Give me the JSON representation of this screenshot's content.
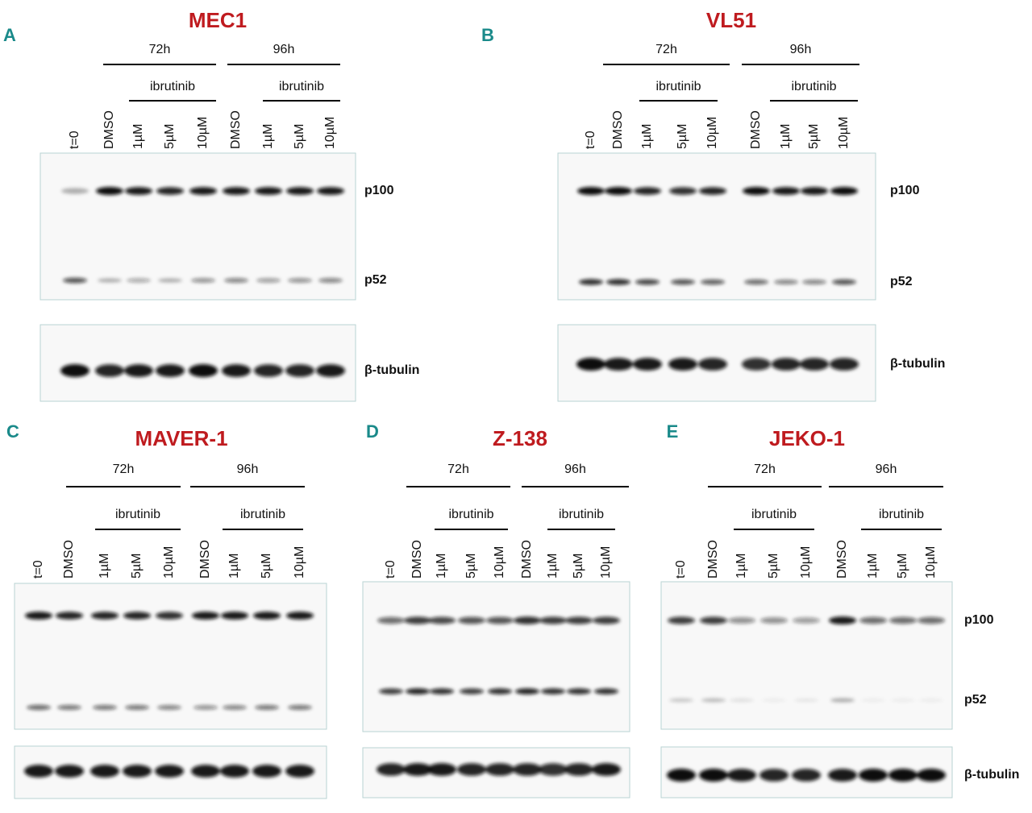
{
  "panels": [
    {
      "letter": "A",
      "title": "MEC1",
      "groups": [
        "72h",
        "96h"
      ],
      "treatment": "ibrutinib",
      "lanes": [
        "t=0",
        "DMSO",
        "1µM",
        "5µM",
        "10µM",
        "DMSO",
        "1µM",
        "5µM",
        "10µM"
      ],
      "bands": [
        "p100",
        "p52",
        "β-tubulin"
      ]
    },
    {
      "letter": "B",
      "title": "VL51",
      "groups": [
        "72h",
        "96h"
      ],
      "treatment": "ibrutinib",
      "lanes": [
        "t=0",
        "DMSO",
        "1µM",
        "5µM",
        "10µM",
        "DMSO",
        "1µM",
        "5µM",
        "10µM"
      ],
      "bands": [
        "p100",
        "p52",
        "β-tubulin"
      ]
    },
    {
      "letter": "C",
      "title": "MAVER-1",
      "groups": [
        "72h",
        "96h"
      ],
      "treatment": "ibrutinib",
      "lanes": [
        "t=0",
        "DMSO",
        "1µM",
        "5µM",
        "10µM",
        "DMSO",
        "1µM",
        "5µM",
        "10µM"
      ]
    },
    {
      "letter": "D",
      "title": "Z-138",
      "groups": [
        "72h",
        "96h"
      ],
      "treatment": "ibrutinib",
      "lanes": [
        "t=0",
        "DMSO",
        "1µM",
        "5µM",
        "10µM",
        "DMSO",
        "1µM",
        "5µM",
        "10µM"
      ]
    },
    {
      "letter": "E",
      "title": "JEKO-1",
      "groups": [
        "72h",
        "96h"
      ],
      "treatment": "ibrutinib",
      "lanes": [
        "t=0",
        "DMSO",
        "1µM",
        "5µM",
        "10µM",
        "DMSO",
        "1µM",
        "5µM",
        "10µM"
      ],
      "bands": [
        "p100",
        "p52",
        "β-tubulin"
      ]
    }
  ]
}
